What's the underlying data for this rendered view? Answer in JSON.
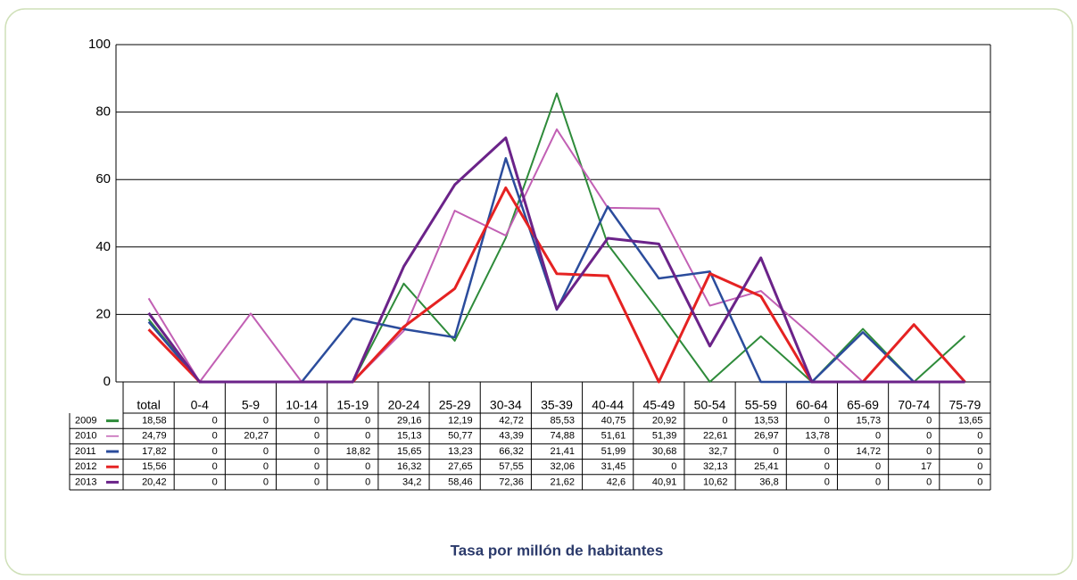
{
  "chart_data": {
    "type": "line",
    "title": "Tasa por millón de habitantes",
    "categories": [
      "total",
      "0-4",
      "5-9",
      "10-14",
      "15-19",
      "20-24",
      "25-29",
      "30-34",
      "35-39",
      "40-44",
      "45-49",
      "50-54",
      "55-59",
      "60-64",
      "65-69",
      "70-74",
      "75-79"
    ],
    "ylim": [
      0,
      100
    ],
    "yticks": [
      0,
      20,
      40,
      60,
      80,
      100
    ],
    "grid": true,
    "series": [
      {
        "name": "2009",
        "color": "#2e8b3a",
        "values": [
          18.58,
          0,
          0,
          0,
          0,
          29.16,
          12.19,
          42.72,
          85.53,
          40.75,
          20.92,
          0,
          13.53,
          0,
          15.73,
          0,
          13.65
        ],
        "value_labels": [
          "18,58",
          "0",
          "0",
          "0",
          "0",
          "29,16",
          "12,19",
          "42,72",
          "85,53",
          "40,75",
          "20,92",
          "0",
          "13,53",
          "0",
          "15,73",
          "0",
          "13,65"
        ]
      },
      {
        "name": "2010",
        "color": "#c260b4",
        "values": [
          24.79,
          0,
          20.27,
          0,
          0,
          15.13,
          50.77,
          43.39,
          74.88,
          51.61,
          51.39,
          22.61,
          26.97,
          13.78,
          0,
          0,
          0
        ],
        "value_labels": [
          "24,79",
          "0",
          "20,27",
          "0",
          "0",
          "15,13",
          "50,77",
          "43,39",
          "74,88",
          "51,61",
          "51,39",
          "22,61",
          "26,97",
          "13,78",
          "0",
          "0",
          "0"
        ]
      },
      {
        "name": "2011",
        "color": "#2b4c9c",
        "values": [
          17.82,
          0,
          0,
          0,
          18.82,
          15.65,
          13.23,
          66.32,
          21.41,
          51.99,
          30.68,
          32.7,
          0,
          0,
          14.72,
          0,
          0
        ],
        "value_labels": [
          "17,82",
          "0",
          "0",
          "0",
          "18,82",
          "15,65",
          "13,23",
          "66,32",
          "21,41",
          "51,99",
          "30,68",
          "32,7",
          "0",
          "0",
          "14,72",
          "0",
          "0"
        ]
      },
      {
        "name": "2012",
        "color": "#e52222",
        "values": [
          15.56,
          0,
          0,
          0,
          0,
          16.32,
          27.65,
          57.55,
          32.06,
          31.45,
          0,
          32.13,
          25.41,
          0,
          0,
          17,
          0
        ],
        "value_labels": [
          "15,56",
          "0",
          "0",
          "0",
          "0",
          "16,32",
          "27,65",
          "57,55",
          "32,06",
          "31,45",
          "0",
          "32,13",
          "25,41",
          "0",
          "0",
          "17",
          "0"
        ]
      },
      {
        "name": "2013",
        "color": "#6b2389",
        "values": [
          20.42,
          0,
          0,
          0,
          0,
          34.2,
          58.46,
          72.36,
          21.62,
          42.6,
          40.91,
          10.62,
          36.8,
          0,
          0,
          0,
          0
        ],
        "value_labels": [
          "20,42",
          "0",
          "0",
          "0",
          "0",
          "34,2",
          "58,46",
          "72,36",
          "21,62",
          "42,6",
          "40,91",
          "10,62",
          "36,8",
          "0",
          "0",
          "0",
          "0"
        ]
      }
    ]
  }
}
